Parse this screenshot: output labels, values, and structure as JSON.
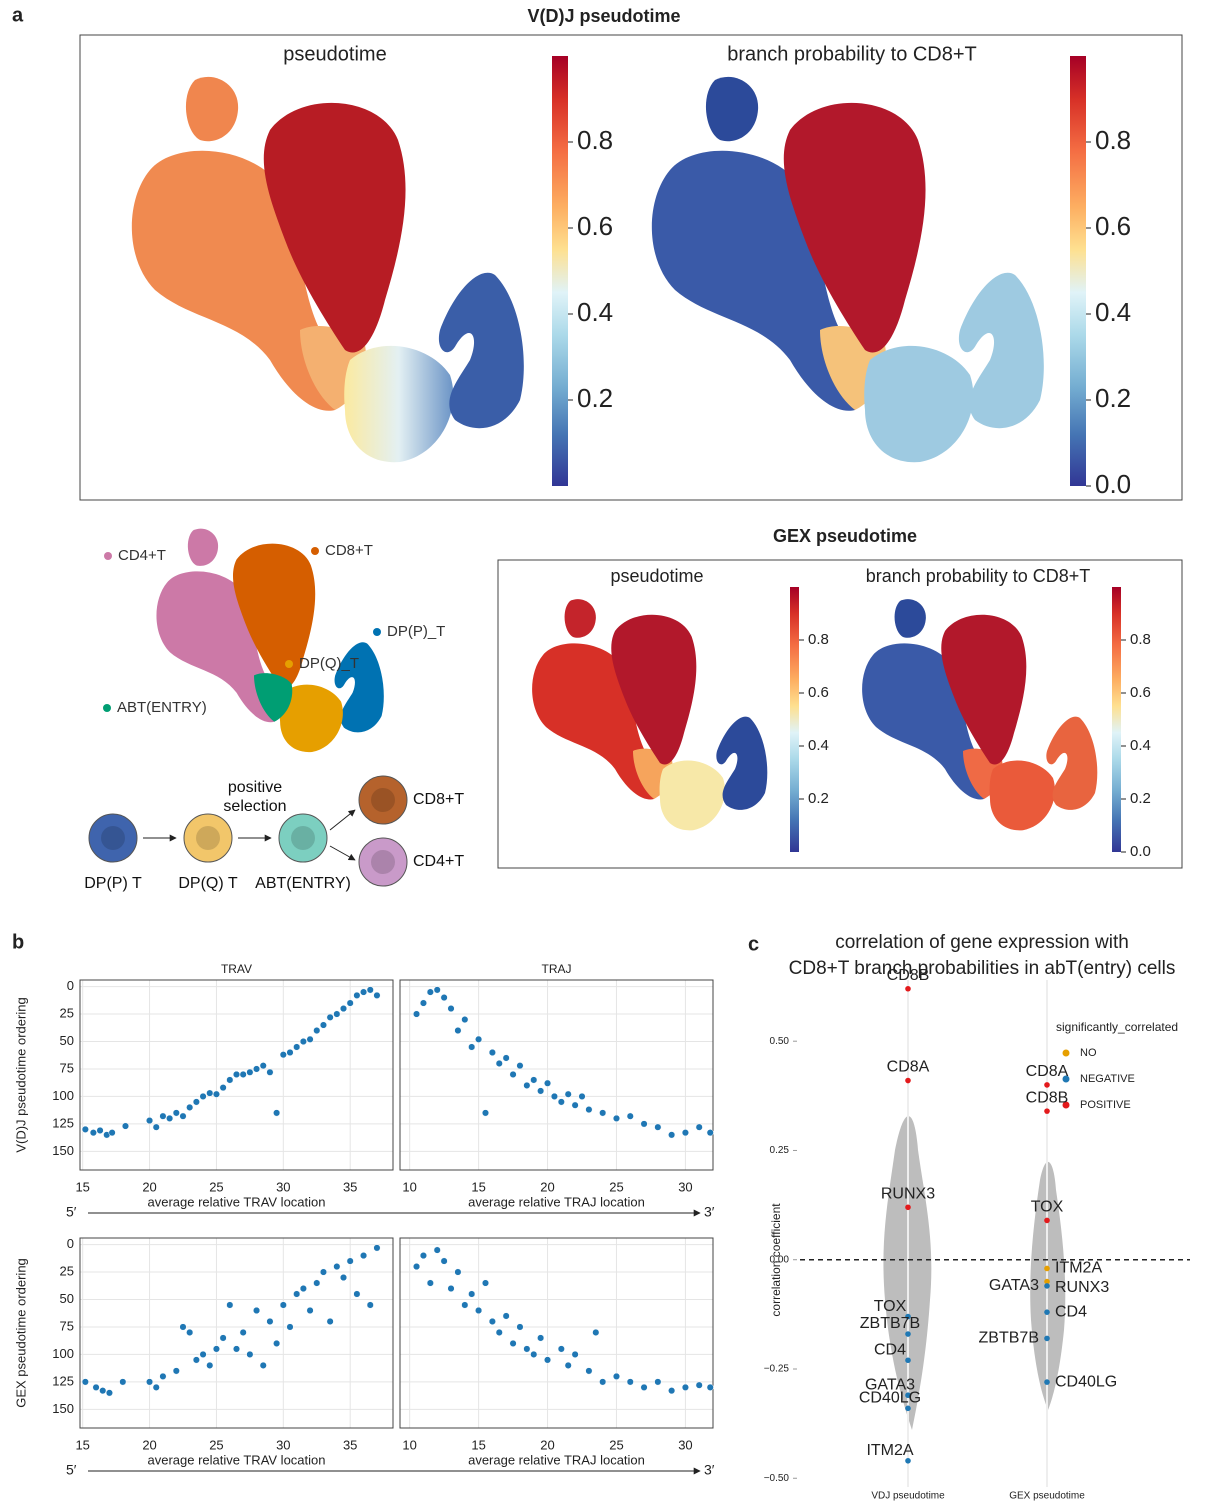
{
  "figure_labels": {
    "a": "a",
    "b": "b",
    "c": "c"
  },
  "vdj_title": "V(D)J pseudotime",
  "gex_title": "GEX pseudotime",
  "arrow_labels": {
    "start": "5′",
    "end": "3′"
  },
  "diagram": {
    "nodes": [
      {
        "label": "DP(P) T",
        "color": "#3f64ad"
      },
      {
        "label": "DP(Q) T",
        "color": "#f2c66a"
      },
      {
        "label": "ABT(ENTRY)",
        "color": "#7ccfc0"
      },
      {
        "label": "CD8+T",
        "color": "#b5622c"
      },
      {
        "label": "CD4+T",
        "color": "#c99ac9"
      }
    ],
    "edge_label": [
      "positive",
      "selection"
    ]
  },
  "chart_data": [
    {
      "type": "umap",
      "title": "pseudotime",
      "colorbar": {
        "lim": [
          0,
          1
        ],
        "ticks": [
          0.2,
          0.4,
          0.6,
          0.8
        ]
      }
    },
    {
      "type": "umap",
      "title": "branch probability to CD8+T",
      "colorbar": {
        "lim": [
          0,
          1
        ],
        "ticks": [
          {
            "value": 0,
            "label": "0.0"
          },
          0.2,
          0.4,
          0.6,
          0.8
        ]
      }
    },
    {
      "type": "umap",
      "title": "pseudotime",
      "colorbar": {
        "lim": [
          0,
          1
        ],
        "ticks": [
          0.2,
          0.4,
          0.6,
          0.8
        ]
      }
    },
    {
      "type": "umap",
      "title": "branch probability to CD8+T",
      "colorbar": {
        "lim": [
          0,
          1
        ],
        "ticks": [
          {
            "value": 0,
            "label": "0.0"
          },
          0.2,
          0.4,
          0.6,
          0.8
        ]
      }
    },
    {
      "type": "umap",
      "series": [
        {
          "name": "CD4+T",
          "color": "#cc79a7"
        },
        {
          "name": "CD8+T",
          "color": "#d55e00"
        },
        {
          "name": "DP(P)_T",
          "color": "#0072b2"
        },
        {
          "name": "DP(Q)_T",
          "color": "#e69f00"
        },
        {
          "name": "ABT(ENTRY)",
          "color": "#009e73"
        }
      ]
    },
    {
      "type": "scatter",
      "title": "TRAV",
      "xlabel": "average relative TRAV location",
      "ylabel": "V(D)J pseudotime ordering",
      "color": "#1f77b4",
      "grid": true,
      "y_inverted": true,
      "xlim": [
        14.8,
        38.2
      ],
      "xticks": [
        15,
        20,
        25,
        30,
        35
      ],
      "ylim": [
        -6,
        167
      ],
      "yticks": [
        0,
        25,
        50,
        75,
        100,
        125,
        150
      ],
      "x": [
        15.2,
        15.8,
        16.3,
        16.8,
        17.2,
        18.2,
        20,
        20.5,
        21,
        21.5,
        22,
        22.5,
        23,
        23.5,
        24,
        24.5,
        25,
        25.5,
        26,
        26.5,
        27,
        27.5,
        28,
        28.5,
        29,
        29.5,
        30,
        30.5,
        31,
        31.5,
        32,
        32.5,
        33,
        33.5,
        34,
        34.5,
        35,
        35.5,
        36,
        36.5,
        37
      ],
      "values": [
        130,
        133,
        131,
        135,
        133,
        127,
        122,
        128,
        118,
        120,
        115,
        118,
        110,
        105,
        100,
        97,
        98,
        92,
        85,
        80,
        80,
        78,
        75,
        72,
        78,
        115,
        62,
        60,
        55,
        50,
        48,
        40,
        35,
        28,
        25,
        20,
        15,
        8,
        5,
        3,
        8
      ]
    },
    {
      "type": "scatter",
      "title": "TRAJ",
      "xlabel": "average relative TRAJ location",
      "color": "#1f77b4",
      "grid": true,
      "y_inverted": true,
      "xlim": [
        9.3,
        32
      ],
      "xticks": [
        10,
        15,
        20,
        25,
        30
      ],
      "ylim": [
        -6,
        167
      ],
      "yticks": [
        0,
        25,
        50,
        75,
        100,
        125,
        150
      ],
      "x": [
        10.5,
        11,
        11.5,
        12,
        12.5,
        13,
        13.5,
        14,
        14.5,
        15,
        15.5,
        16,
        16.5,
        17,
        17.5,
        18,
        18.5,
        19,
        19.5,
        20,
        20.5,
        21,
        21.5,
        22,
        22.5,
        23,
        24,
        25,
        26,
        27,
        28,
        29,
        30,
        31,
        31.8
      ],
      "values": [
        25,
        15,
        5,
        3,
        10,
        20,
        40,
        30,
        55,
        48,
        115,
        60,
        70,
        65,
        80,
        72,
        90,
        85,
        95,
        88,
        100,
        105,
        98,
        108,
        100,
        112,
        115,
        120,
        118,
        125,
        128,
        135,
        133,
        128,
        133
      ]
    },
    {
      "type": "scatter",
      "xlabel": "average relative TRAV location",
      "ylabel": "GEX pseudotime ordering",
      "color": "#1f77b4",
      "grid": true,
      "y_inverted": true,
      "xlim": [
        14.8,
        38.2
      ],
      "xticks": [
        15,
        20,
        25,
        30,
        35
      ],
      "ylim": [
        -6,
        167
      ],
      "yticks": [
        0,
        25,
        50,
        75,
        100,
        125,
        150
      ],
      "x": [
        15.2,
        16,
        16.5,
        17,
        18,
        20,
        20.5,
        21,
        22,
        22.5,
        23,
        23.5,
        24,
        24.5,
        25,
        25.5,
        26,
        26.5,
        27,
        27.5,
        28,
        28.5,
        29,
        29.5,
        30,
        30.5,
        31,
        31.5,
        32,
        32.5,
        33,
        33.5,
        34,
        34.5,
        35,
        35.5,
        36,
        36.5,
        37
      ],
      "values": [
        125,
        130,
        133,
        135,
        125,
        125,
        130,
        120,
        115,
        75,
        80,
        105,
        100,
        110,
        95,
        85,
        55,
        95,
        80,
        100,
        60,
        110,
        70,
        90,
        55,
        75,
        45,
        40,
        60,
        35,
        25,
        70,
        20,
        30,
        15,
        45,
        10,
        55,
        3
      ]
    },
    {
      "type": "scatter",
      "xlabel": "average relative TRAJ location",
      "color": "#1f77b4",
      "grid": true,
      "y_inverted": true,
      "xlim": [
        9.3,
        32
      ],
      "xticks": [
        10,
        15,
        20,
        25,
        30
      ],
      "ylim": [
        -6,
        167
      ],
      "yticks": [
        0,
        25,
        50,
        75,
        100,
        125,
        150
      ],
      "x": [
        10.5,
        11,
        11.5,
        12,
        12.5,
        13,
        13.5,
        14,
        14.5,
        15,
        15.5,
        16,
        16.5,
        17,
        17.5,
        18,
        18.5,
        19,
        19.5,
        20,
        21,
        21.5,
        22,
        23,
        23.5,
        24,
        25,
        26,
        27,
        28,
        29,
        30,
        31,
        31.8
      ],
      "values": [
        20,
        10,
        35,
        5,
        15,
        40,
        25,
        55,
        45,
        60,
        35,
        70,
        80,
        65,
        90,
        75,
        95,
        100,
        85,
        105,
        95,
        110,
        100,
        115,
        80,
        125,
        120,
        125,
        130,
        125,
        133,
        130,
        128,
        130
      ]
    },
    {
      "type": "strip",
      "title": [
        "correlation of gene expression with",
        "CD8+T branch probabilities in abT(entry) cells"
      ],
      "ylabel": "correlation coefficient",
      "categories": [
        "VDJ pseudotime",
        "GEX pseudotime"
      ],
      "ylim": [
        -0.52,
        0.64
      ],
      "yticks": [
        {
          "value": 0.5,
          "label": "0.50"
        },
        {
          "value": 0.25,
          "label": "0.25"
        },
        {
          "value": 0,
          "label": "0.00"
        },
        {
          "value": -0.25,
          "label": "−0.25"
        },
        {
          "value": -0.5,
          "label": "−0.50"
        }
      ],
      "zero_line": true,
      "legend_title": "significantly_correlated",
      "series": [
        {
          "name": "NO",
          "color": "#e69f00",
          "x": [
            "GEX pseudotime",
            "GEX pseudotime"
          ],
          "labels": [
            "ITM2A",
            "RUNX3"
          ],
          "values": [
            -0.02,
            -0.05
          ]
        },
        {
          "name": "NEGATIVE",
          "color": "#1f78b4",
          "x": [
            "VDJ pseudotime",
            "VDJ pseudotime",
            "VDJ pseudotime",
            "VDJ pseudotime",
            "VDJ pseudotime",
            "VDJ pseudotime",
            "GEX pseudotime",
            "GEX pseudotime",
            "GEX pseudotime",
            "GEX pseudotime"
          ],
          "labels": [
            "TOX",
            "ZBTB7B",
            "CD4",
            "GATA3",
            "CD40LG",
            "ITM2A",
            "GATA3",
            "CD4",
            "ZBTB7B",
            "CD40LG"
          ],
          "values": [
            -0.13,
            -0.17,
            -0.23,
            -0.31,
            -0.34,
            -0.46,
            -0.06,
            -0.12,
            -0.18,
            -0.28
          ]
        },
        {
          "name": "POSITIVE",
          "color": "#e31a1c",
          "x": [
            "VDJ pseudotime",
            "VDJ pseudotime",
            "VDJ pseudotime",
            "GEX pseudotime",
            "GEX pseudotime",
            "GEX pseudotime"
          ],
          "labels": [
            "CD8B",
            "CD8A",
            "RUNX3",
            "CD8A",
            "CD8B",
            "TOX"
          ],
          "values": [
            0.62,
            0.41,
            0.12,
            0.4,
            0.34,
            0.09
          ]
        }
      ]
    }
  ]
}
